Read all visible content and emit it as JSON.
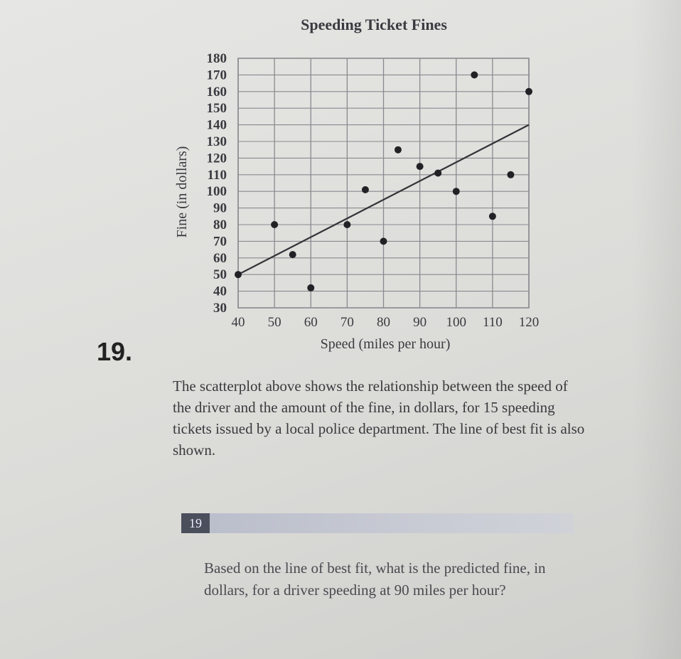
{
  "question_number": "19.",
  "problem_badge": "19",
  "description": "The scatterplot above shows the relationship between the speed of the driver and the amount of the fine, in dollars, for 15 speeding tickets issued by a local police department. The line of best fit is also shown.",
  "question": "Based on the line of best fit, what is the predicted fine, in dollars, for a driver speeding at 90 miles per hour?",
  "chart_data": {
    "type": "scatter",
    "title": "Speeding Ticket Fines",
    "xlabel": "Speed (miles per hour)",
    "ylabel": "Fine (in dollars)",
    "xlim": [
      40,
      120
    ],
    "ylim": [
      30,
      180
    ],
    "x_ticks": [
      "40",
      "50",
      "60",
      "70",
      "80",
      "90",
      "100",
      "110",
      "120"
    ],
    "y_ticks": [
      "30",
      "40",
      "50",
      "60",
      "70",
      "80",
      "90",
      "100",
      "110",
      "120",
      "130",
      "140",
      "150",
      "160",
      "170",
      "180"
    ],
    "grid": true,
    "points": [
      {
        "x": 40,
        "y": 50
      },
      {
        "x": 50,
        "y": 80
      },
      {
        "x": 55,
        "y": 62
      },
      {
        "x": 60,
        "y": 42
      },
      {
        "x": 70,
        "y": 80
      },
      {
        "x": 75,
        "y": 101
      },
      {
        "x": 80,
        "y": 70
      },
      {
        "x": 84,
        "y": 125
      },
      {
        "x": 90,
        "y": 115
      },
      {
        "x": 95,
        "y": 111
      },
      {
        "x": 100,
        "y": 100
      },
      {
        "x": 105,
        "y": 170
      },
      {
        "x": 110,
        "y": 85
      },
      {
        "x": 115,
        "y": 110
      },
      {
        "x": 120,
        "y": 160
      }
    ],
    "best_fit": {
      "x": [
        40,
        120
      ],
      "y": [
        50,
        140
      ]
    },
    "colors": {
      "ink": "#3a3a40",
      "grid": "#8a8a90",
      "line": "#333338",
      "point": "#222226"
    }
  }
}
